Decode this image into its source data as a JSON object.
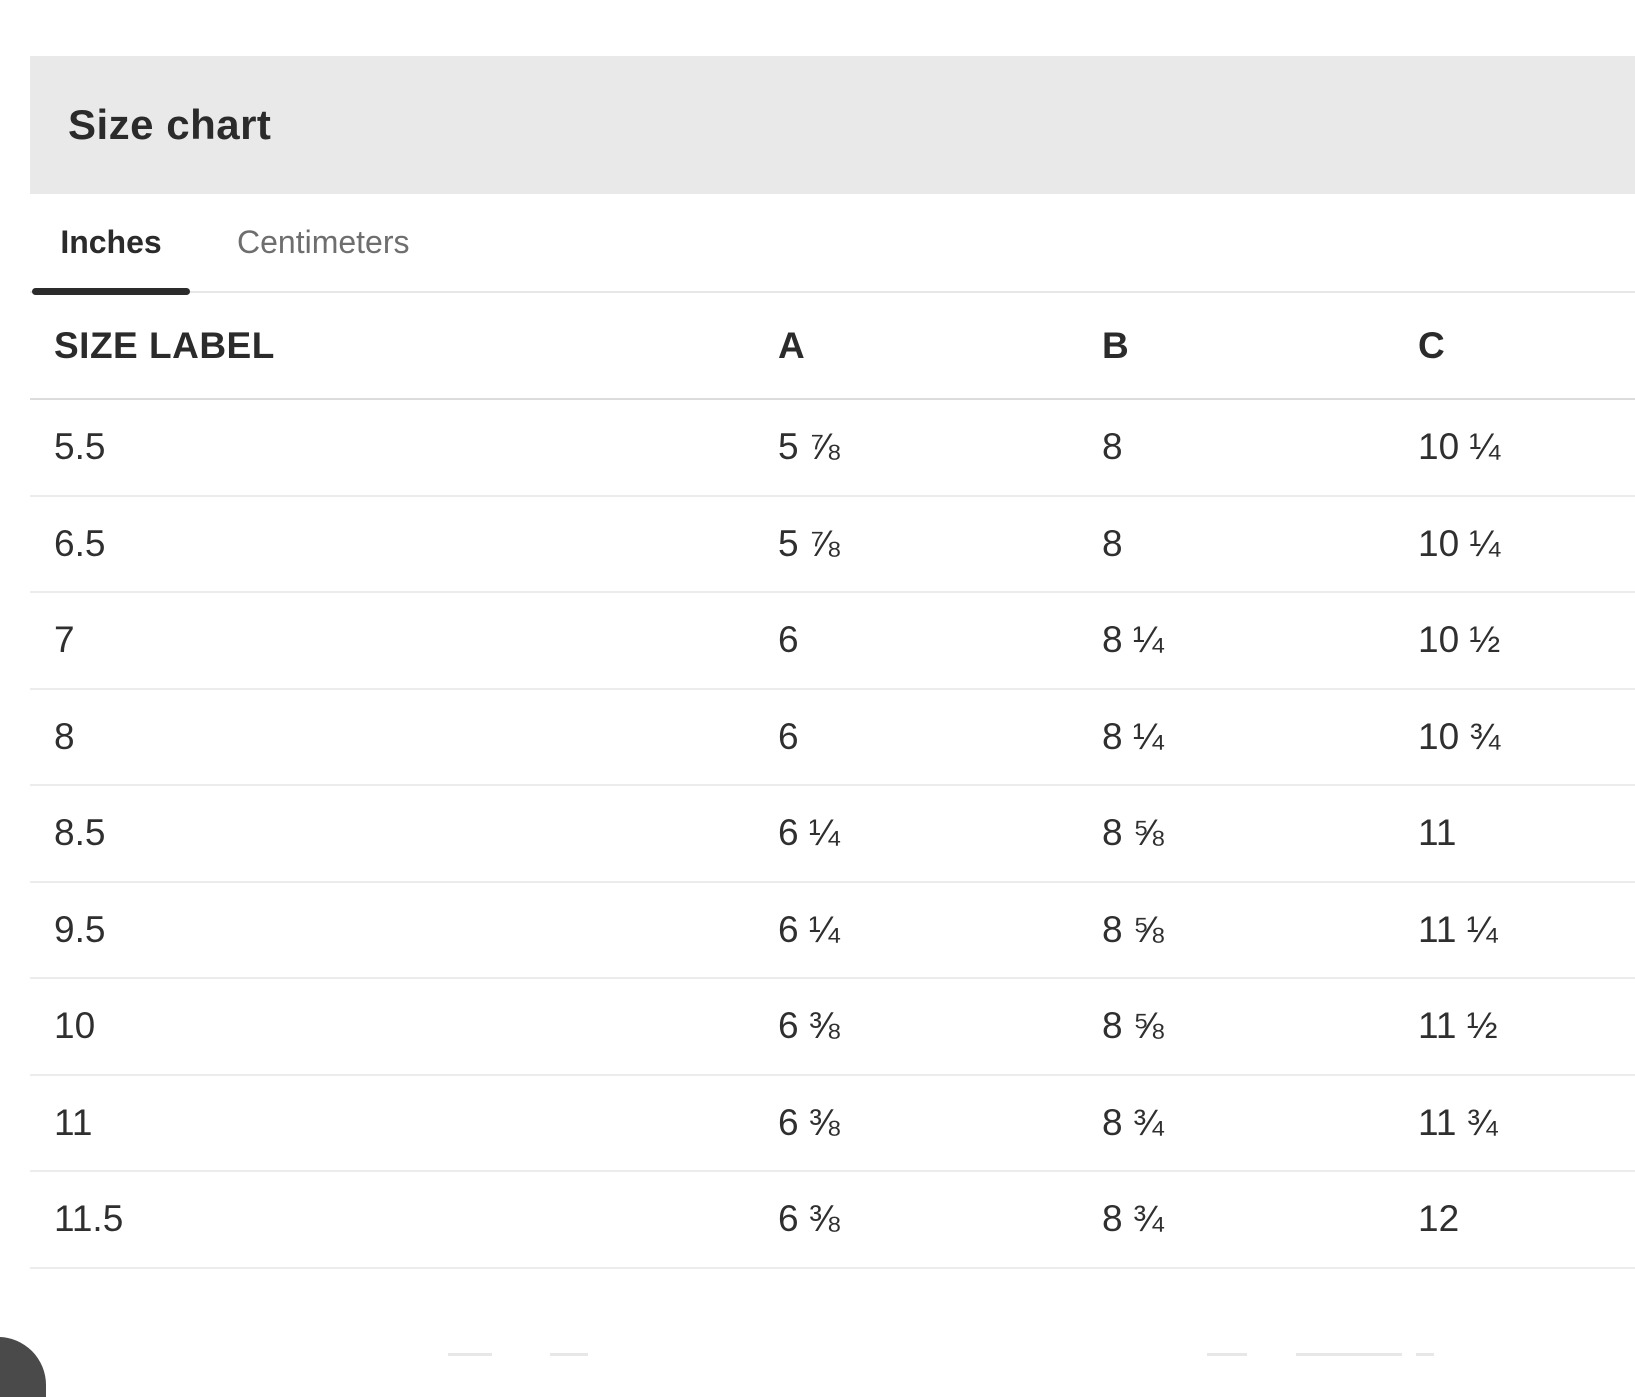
{
  "header": {
    "title": "Size chart"
  },
  "tabs": [
    {
      "label": "Inches",
      "active": true
    },
    {
      "label": "Centimeters",
      "active": false
    }
  ],
  "table": {
    "columns": [
      "SIZE LABEL",
      "A",
      "B",
      "C"
    ],
    "rows": [
      [
        "5.5",
        "5 ⅞",
        "8",
        "10 ¼"
      ],
      [
        "6.5",
        "5 ⅞",
        "8",
        "10 ¼"
      ],
      [
        "7",
        "6",
        "8 ¼",
        "10 ½"
      ],
      [
        "8",
        "6",
        "8 ¼",
        "10 ¾"
      ],
      [
        "8.5",
        "6 ¼",
        "8 ⅝",
        "11"
      ],
      [
        "9.5",
        "6 ¼",
        "8 ⅝",
        "11 ¼"
      ],
      [
        "10",
        "6 ⅜",
        "8 ⅝",
        "11 ½"
      ],
      [
        "11",
        "6 ⅜",
        "8 ¾",
        "11 ¾"
      ],
      [
        "11.5",
        "6 ⅜",
        "8 ¾",
        "12"
      ]
    ]
  },
  "colors": {
    "band_background": "#e9e9e9",
    "text_dark": "#2b2b2b",
    "text_cell": "#2f2f2f",
    "tab_inactive": "#6e6e6e",
    "row_separator": "#ececec",
    "header_separator": "#dcdcdc",
    "tab_line": "#e7e7e7",
    "active_tab_indicator": "#2b2b2b"
  }
}
